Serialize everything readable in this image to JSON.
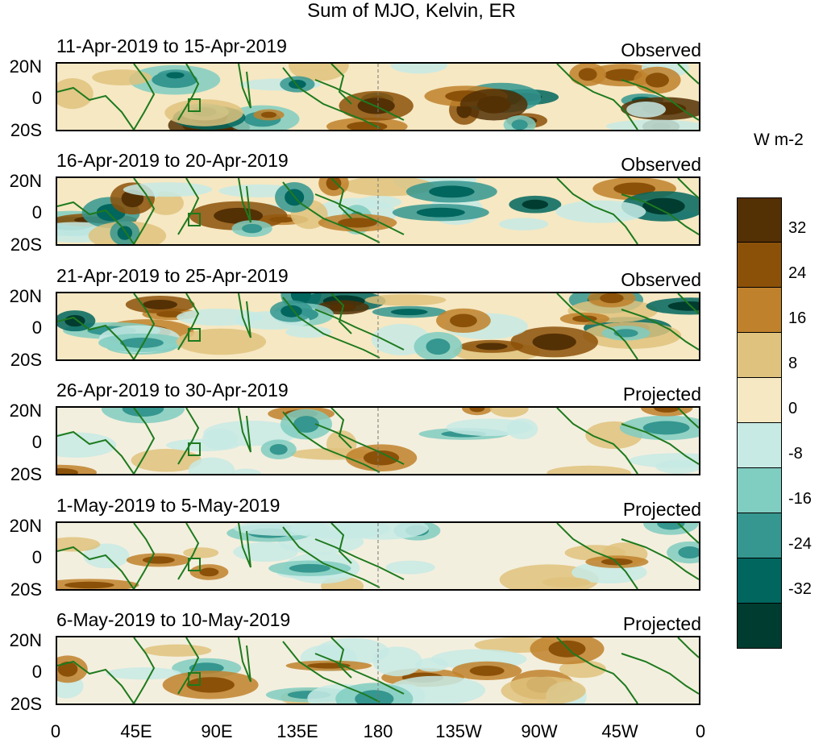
{
  "title": "Sum of MJO, Kelvin, ER",
  "units": "W m-2",
  "panels": [
    {
      "date_range": "11-Apr-2019 to 15-Apr-2019",
      "status": "Observed"
    },
    {
      "date_range": "16-Apr-2019 to 20-Apr-2019",
      "status": "Observed"
    },
    {
      "date_range": "21-Apr-2019 to 25-Apr-2019",
      "status": "Observed"
    },
    {
      "date_range": "26-Apr-2019 to 30-Apr-2019",
      "status": "Projected"
    },
    {
      "date_range": "1-May-2019 to 5-May-2019",
      "status": "Projected"
    },
    {
      "date_range": "6-May-2019 to 10-May-2019",
      "status": "Projected"
    }
  ],
  "lat_labels": [
    "20N",
    "0",
    "20S"
  ],
  "lon_labels": [
    "0",
    "45E",
    "90E",
    "135E",
    "180",
    "135W",
    "90W",
    "45W",
    "0"
  ],
  "colorbar": {
    "ticks": [
      "32",
      "24",
      "16",
      "8",
      "0",
      "-8",
      "-16",
      "-24",
      "-32"
    ],
    "colors": [
      "#543005",
      "#8c5109",
      "#bf812c",
      "#dfc27d",
      "#f6e8c3",
      "#c7eae5",
      "#80cdc1",
      "#35978f",
      "#01665e",
      "#003c30"
    ]
  }
}
